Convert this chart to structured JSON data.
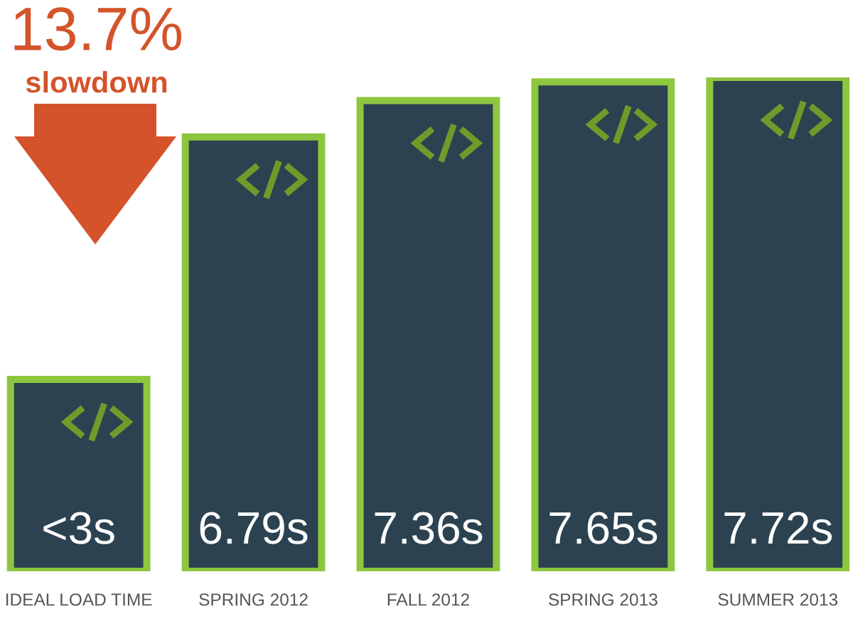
{
  "chart_data": {
    "type": "bar",
    "categories": [
      "IDEAL LOAD TIME",
      "SPRING 2012",
      "FALL 2012",
      "SPRING 2013",
      "SUMMER 2013"
    ],
    "values": [
      3,
      6.79,
      7.36,
      7.65,
      7.72
    ],
    "value_labels": [
      "<3s",
      "6.79s",
      "7.36s",
      "7.65s",
      "7.72s"
    ],
    "color": "#2c4251",
    "annotations": [
      "13.7%",
      "slowdown"
    ]
  }
}
